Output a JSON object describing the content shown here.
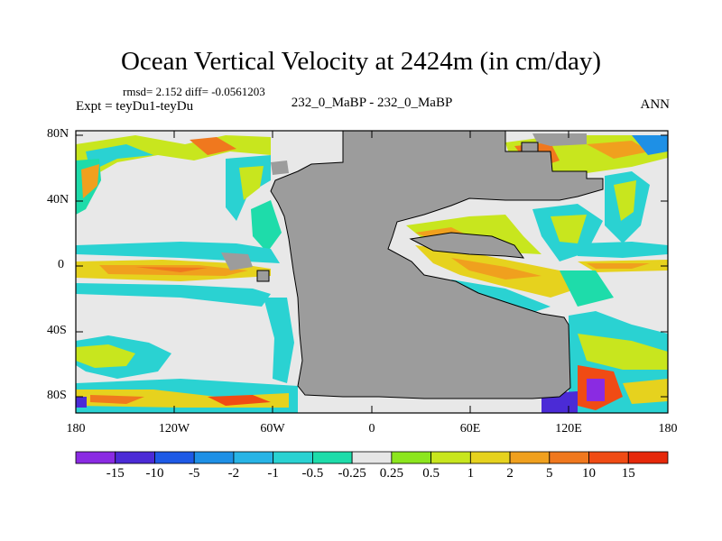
{
  "title": "Ocean Vertical Velocity at 2424m (in cm/day)",
  "stats": "rmsd= 2.152 diff= -0.0561203",
  "expt": "Expt = teyDu1-teyDu",
  "center_label": "232_0_MaBP - 232_0_MaBP",
  "season": "ANN",
  "map": {
    "lat_labels": [
      "80N",
      "40N",
      "0",
      "40S",
      "80S"
    ],
    "lon_labels": [
      "180",
      "120W",
      "60W",
      "0",
      "60E",
      "120E",
      "180"
    ],
    "colors": {
      "land": "#9c9c9c",
      "near_zero": "#e8e8e8",
      "frame": "#000000"
    }
  },
  "colorbar": {
    "labels": [
      "-15",
      "-10",
      "-5",
      "-2",
      "-1",
      "-0.5",
      "-0.25",
      "0.25",
      "0.5",
      "1",
      "2",
      "5",
      "10",
      "15"
    ],
    "colors": [
      "#8a2be2",
      "#4b2bd6",
      "#1e5ae6",
      "#1e90e6",
      "#28b4e6",
      "#2ad2d2",
      "#1edcaa",
      "#e6e6e6",
      "#8ce61e",
      "#c8e61e",
      "#e6d21e",
      "#f0a01e",
      "#f0781e",
      "#f04b14",
      "#e6280a"
    ]
  }
}
